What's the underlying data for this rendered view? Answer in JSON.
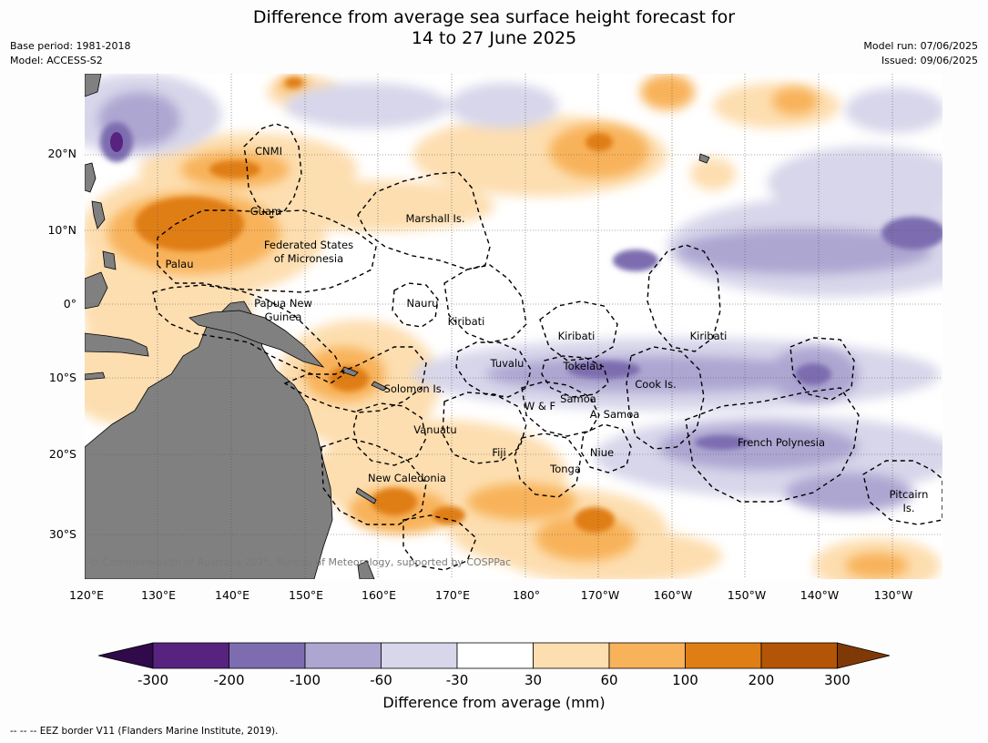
{
  "header": {
    "title_line1": "Difference from average sea surface height forecast for",
    "title_line2": "14 to 27 June 2025",
    "base_period": "Base period: 1981-2018",
    "model": "Model: ACCESS-S2",
    "model_run": "Model run: 07/06/2025",
    "issued": "Issued: 09/06/2025"
  },
  "map": {
    "lon_range": [
      120,
      237
    ],
    "lat_range": [
      -36,
      31
    ],
    "land_color": "#808080",
    "lat_ticks": [
      "20°N",
      "10°N",
      "0°",
      "10°S",
      "20°S",
      "30°S"
    ],
    "lon_ticks": [
      "120°E",
      "130°E",
      "140°E",
      "150°E",
      "160°E",
      "170°E",
      "180°",
      "170°W",
      "160°W",
      "150°W",
      "140°W",
      "130°W"
    ],
    "regions": [
      "CNMI",
      "Guam",
      "Marshall Is.",
      "Federated States",
      "of Micronesia",
      "Palau",
      "Papua New",
      "Guinea",
      "Nauru",
      "Kiribati",
      "Kiribati",
      "Kiribati",
      "Tuvalu",
      "Tokelau",
      "Cook Is.",
      "Solomon Is.",
      "Samoa",
      "W & F",
      "A. Samoa",
      "Vanuatu",
      "Fiji",
      "Niue",
      "French Polynesia",
      "Tonga",
      "New Caledonia",
      "Pitcairn",
      "Is."
    ],
    "copyright": "© Commonwealth of Australia 2025, Bureau of Meteorology, supported by COSPPac"
  },
  "colorbar": {
    "ticks": [
      "-300",
      "-200",
      "-100",
      "-60",
      "-30",
      "30",
      "60",
      "100",
      "200",
      "300"
    ],
    "colors": [
      "#300a4a",
      "#57237f",
      "#7d6db0",
      "#ada6d1",
      "#d7d6ea",
      "#ffffff",
      "#fddeb0",
      "#f8b25a",
      "#e07e16",
      "#b35407",
      "#7f3906"
    ],
    "label": "Difference from average (mm)"
  },
  "footer": {
    "eez_note": "--  --  -- EEZ border V11 (Flanders Marine Institute, 2019)."
  }
}
